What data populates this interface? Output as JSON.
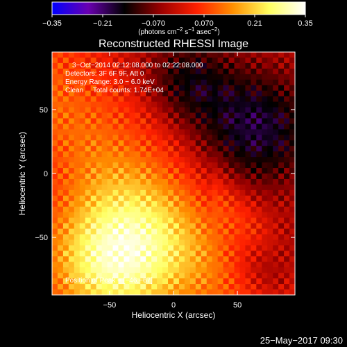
{
  "chart_data": {
    "type": "heatmap",
    "title": "Reconstructed RHESSI Image",
    "xlabel": "Heliocentric X (arcsec)",
    "ylabel": "Heliocentric Y (arcsec)",
    "xlim": [
      -95,
      95
    ],
    "ylim": [
      -95,
      95
    ],
    "x_ticks": [
      -50,
      0,
      50
    ],
    "y_ticks": [
      -50,
      0,
      50
    ],
    "x_tick_labels": [
      "−50",
      "0",
      "50"
    ],
    "y_tick_labels": [
      "−50",
      "0",
      "50"
    ],
    "colorbar": {
      "range": [
        -0.35,
        0.35
      ],
      "ticks": [
        -0.35,
        -0.21,
        -0.07,
        0.07,
        0.21,
        0.35
      ],
      "tick_labels": [
        "−0.35",
        "−0.21",
        "−0.070",
        "0.070",
        "0.21",
        "0.35"
      ],
      "units_prefix": "(photons cm",
      "units_exp1": "−2",
      "units_mid1": " s",
      "units_exp2": "−1",
      "units_mid2": " asec",
      "units_exp3": "−2",
      "units_suffix": ")",
      "colors": [
        "#0000ff",
        "#6a00b0",
        "#000000",
        "#9a0000",
        "#ff2000",
        "#ff9000",
        "#ffff60",
        "#ffffff"
      ]
    },
    "annotations": [
      "3−Oct−2014 02:12:08.000 to 02:22:08.000",
      "Detectors: 3F 6F 9F, Att 0",
      "Energy Range: 3.0 − 6.0 keV",
      "Clean     Total counts: 1.74E+04"
    ],
    "peak_label": "Position of Peak = [−46,−67]",
    "peak_position": [
      -46,
      -67
    ],
    "grid": false
  },
  "footer": {
    "date": "25−May−2017 09:30"
  }
}
